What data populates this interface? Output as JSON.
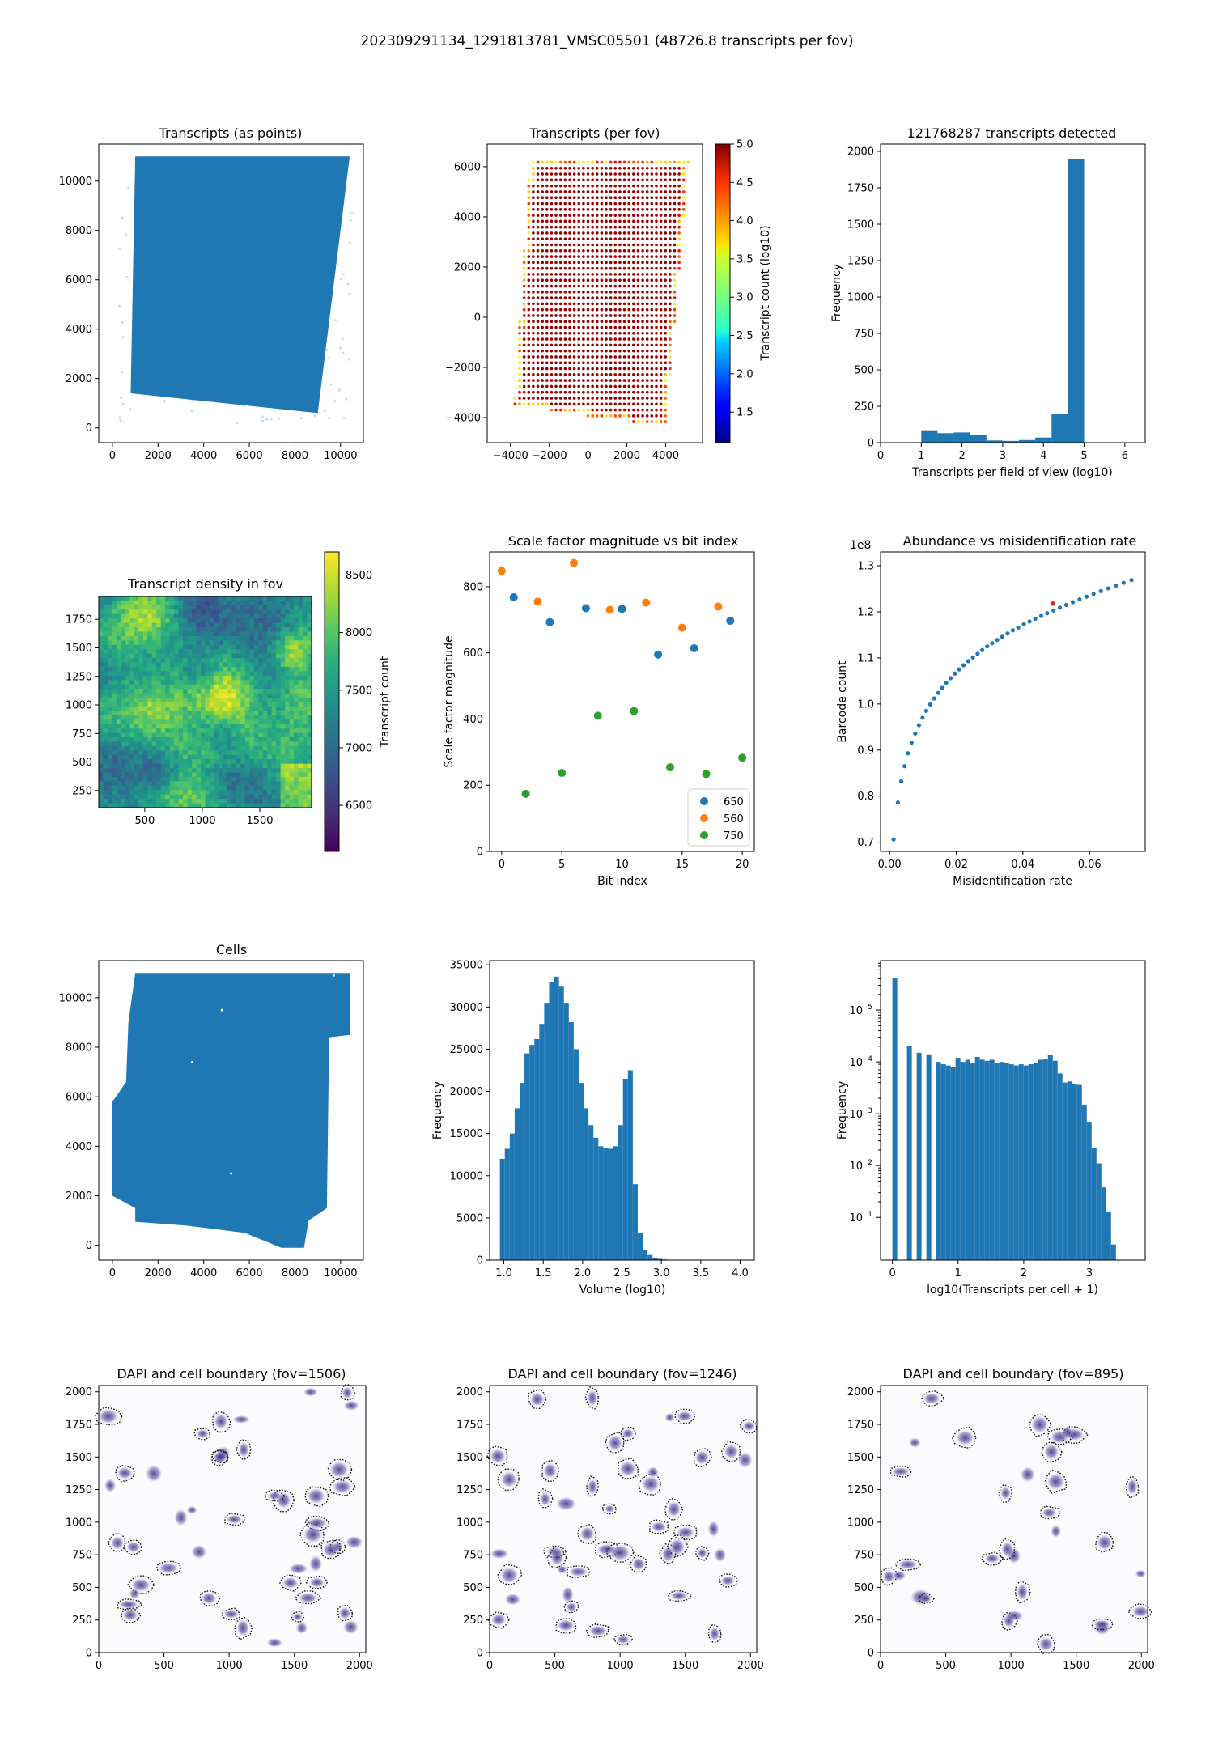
{
  "figure_title": "202309291134_1291813781_VMSC05501 (48726.8 transcripts per fov)",
  "colors": {
    "blue": "#1f77b4",
    "orange": "#ff7f0e",
    "green": "#2ca02c",
    "red_point": "#d62728"
  },
  "chart_data": [
    {
      "id": "transcripts-points",
      "type": "scatter",
      "title": "Transcripts (as points)",
      "xlabel": "",
      "ylabel": "",
      "xlim": [
        -600,
        11000
      ],
      "ylim": [
        -600,
        11500
      ],
      "xticks": [
        0,
        2000,
        4000,
        6000,
        8000,
        10000
      ],
      "yticks": [
        0,
        2000,
        4000,
        6000,
        8000,
        10000
      ],
      "region_polygon": [
        [
          1000,
          11000
        ],
        [
          10400,
          11000
        ],
        [
          9000,
          600
        ],
        [
          800,
          1400
        ]
      ],
      "color": "#1f77b4"
    },
    {
      "id": "transcripts-per-fov",
      "type": "scatter",
      "title": "Transcripts (per fov)",
      "xlim": [
        -5200,
        5900
      ],
      "ylim": [
        -5000,
        6900
      ],
      "xticks": [
        -4000,
        -2000,
        0,
        2000,
        4000
      ],
      "xtick_labels": [
        "−4000",
        "−2000",
        "0",
        "2000",
        "4000"
      ],
      "yticks": [
        -4000,
        -2000,
        0,
        2000,
        4000,
        6000
      ],
      "ytick_labels": [
        "−4000",
        "−2000",
        "0",
        "2000",
        "4000",
        "6000"
      ],
      "colorbar": {
        "label": "Transcript count (log10)",
        "ticks": [
          1.5,
          2.0,
          2.5,
          3.0,
          3.5,
          4.0,
          4.5,
          5.0
        ],
        "tick_labels": [
          "1.5",
          "2.0",
          "2.5",
          "3.0",
          "3.5",
          "4.0",
          "4.5",
          "5.0"
        ],
        "range": [
          1.1,
          5.0
        ],
        "colormap": "jet"
      },
      "grid_polygon": [
        [
          -3000,
          6400
        ],
        [
          5200,
          6400
        ],
        [
          4000,
          -4400
        ],
        [
          -3800,
          -3500
        ]
      ],
      "interior_value": 4.9,
      "edge_value": 3.3
    },
    {
      "id": "transcripts-histogram",
      "type": "bar",
      "title": "121768287 transcripts detected",
      "xlabel": "Transcripts per field of view (log10)",
      "ylabel": "Frequency",
      "xlim": [
        0,
        6.5
      ],
      "ylim": [
        0,
        2050
      ],
      "xticks": [
        0,
        1,
        2,
        3,
        4,
        5,
        6
      ],
      "yticks": [
        0,
        250,
        500,
        750,
        1000,
        1250,
        1500,
        1750,
        2000
      ],
      "bin_edges": [
        1.0,
        1.4,
        1.8,
        2.2,
        2.6,
        3.0,
        3.4,
        3.8,
        4.2,
        4.6,
        5.0
      ],
      "values": [
        85,
        65,
        70,
        55,
        15,
        12,
        18,
        35,
        200,
        1945
      ]
    },
    {
      "id": "density-in-fov",
      "type": "heatmap",
      "title": "Transcript density in fov",
      "xlim": [
        100,
        1950
      ],
      "ylim": [
        100,
        1950
      ],
      "xticks": [
        500,
        1000,
        1500
      ],
      "yticks": [
        250,
        500,
        750,
        1000,
        1250,
        1500,
        1750
      ],
      "colorbar": {
        "label": "Transcript count",
        "ticks": [
          6500,
          7000,
          7500,
          8000,
          8500
        ],
        "tick_labels": [
          "6500",
          "7000",
          "7500",
          "8000",
          "8500"
        ],
        "range": [
          6100,
          8700
        ],
        "colormap": "viridis"
      }
    },
    {
      "id": "scale-factor",
      "type": "scatter",
      "title": "Scale factor magnitude vs bit index",
      "xlabel": "Bit index",
      "ylabel": "Scale factor magnitude",
      "xlim": [
        -1,
        21
      ],
      "ylim": [
        0,
        905
      ],
      "xticks": [
        0,
        5,
        10,
        15,
        20
      ],
      "yticks": [
        0,
        200,
        400,
        600,
        800
      ],
      "legend_position": "lower-right",
      "series": [
        {
          "name": "650",
          "color": "#1f77b4",
          "x": [
            1,
            4,
            7,
            10,
            13,
            16,
            19
          ],
          "y": [
            768,
            693,
            735,
            733,
            595,
            614,
            697
          ]
        },
        {
          "name": "560",
          "color": "#ff7f0e",
          "x": [
            0,
            3,
            6,
            9,
            12,
            15,
            18
          ],
          "y": [
            848,
            755,
            872,
            730,
            752,
            676,
            740
          ]
        },
        {
          "name": "750",
          "color": "#2ca02c",
          "x": [
            2,
            5,
            8,
            11,
            14,
            17,
            20
          ],
          "y": [
            174,
            237,
            410,
            424,
            254,
            234,
            283
          ]
        }
      ]
    },
    {
      "id": "abundance",
      "type": "scatter",
      "title": "Abundance vs misidentification rate",
      "xlabel": "Misidentification rate",
      "ylabel": "Barcode count",
      "offset_label": "1e8",
      "xlim": [
        -0.0027,
        0.0767
      ],
      "ylim": [
        0.68,
        1.33
      ],
      "xticks": [
        0.0,
        0.02,
        0.04,
        0.06
      ],
      "xtick_labels": [
        "0.00",
        "0.02",
        "0.04",
        "0.06"
      ],
      "yticks": [
        0.7,
        0.8,
        0.9,
        1.0,
        1.1,
        1.2,
        1.3
      ],
      "ytick_labels": [
        "0.7",
        "0.8",
        "0.9",
        "1.0",
        "1.1",
        "1.2",
        "1.3"
      ],
      "x": [
        0.0012,
        0.0025,
        0.0035,
        0.0045,
        0.0055,
        0.0066,
        0.0077,
        0.0088,
        0.0099,
        0.011,
        0.0122,
        0.0134,
        0.0146,
        0.0158,
        0.017,
        0.0183,
        0.0196,
        0.0209,
        0.0222,
        0.0236,
        0.025,
        0.0264,
        0.0278,
        0.0293,
        0.0308,
        0.0323,
        0.0338,
        0.0354,
        0.037,
        0.0386,
        0.0403,
        0.042,
        0.0437,
        0.0455,
        0.0473,
        0.0492,
        0.0511,
        0.053,
        0.055,
        0.057,
        0.0591,
        0.0612,
        0.0634,
        0.0656,
        0.0679,
        0.0702,
        0.0726
      ],
      "y": [
        0.706,
        0.786,
        0.832,
        0.865,
        0.893,
        0.916,
        0.936,
        0.954,
        0.97,
        0.985,
        0.999,
        1.012,
        1.024,
        1.035,
        1.046,
        1.056,
        1.066,
        1.075,
        1.084,
        1.093,
        1.101,
        1.109,
        1.117,
        1.125,
        1.132,
        1.139,
        1.146,
        1.153,
        1.16,
        1.166,
        1.173,
        1.179,
        1.185,
        1.191,
        1.197,
        1.203,
        1.209,
        1.215,
        1.221,
        1.227,
        1.233,
        1.239,
        1.245,
        1.251,
        1.257,
        1.263,
        1.269
      ],
      "highlight": {
        "x": 0.049,
        "y": 1.218,
        "color": "#d62728"
      }
    },
    {
      "id": "cells",
      "type": "scatter",
      "title": "Cells",
      "xlim": [
        -600,
        11000
      ],
      "ylim": [
        -600,
        11500
      ],
      "xticks": [
        0,
        2000,
        4000,
        6000,
        8000,
        10000
      ],
      "yticks": [
        0,
        2000,
        4000,
        6000,
        8000,
        10000
      ],
      "region_polygon": [
        [
          1000,
          11000
        ],
        [
          10400,
          11000
        ],
        [
          10400,
          8500
        ],
        [
          9500,
          8400
        ],
        [
          9400,
          1500
        ],
        [
          8600,
          1000
        ],
        [
          8400,
          -100
        ],
        [
          7400,
          -100
        ],
        [
          5800,
          500
        ],
        [
          3200,
          800
        ],
        [
          1000,
          950
        ],
        [
          1000,
          1500
        ],
        [
          0,
          2000
        ],
        [
          0,
          5800
        ],
        [
          600,
          6600
        ],
        [
          700,
          9000
        ]
      ],
      "color": "#1f77b4"
    },
    {
      "id": "volume-histogram",
      "type": "bar",
      "title": "",
      "xlabel": "Volume (log10)",
      "ylabel": "Frequency",
      "xlim": [
        0.82,
        4.18
      ],
      "ylim": [
        0,
        35500
      ],
      "xticks": [
        1.0,
        1.5,
        2.0,
        2.5,
        3.0,
        3.5,
        4.0
      ],
      "xtick_labels": [
        "1.0",
        "1.5",
        "2.0",
        "2.5",
        "3.0",
        "3.5",
        "4.0"
      ],
      "yticks": [
        0,
        5000,
        10000,
        15000,
        20000,
        25000,
        30000,
        35000
      ],
      "bin_start": 0.95,
      "bin_width": 0.0625,
      "values": [
        12000,
        13200,
        15000,
        18000,
        21000,
        24500,
        25500,
        26200,
        28000,
        30500,
        33000,
        33600,
        32500,
        30500,
        28200,
        25000,
        21000,
        18000,
        16000,
        14500,
        13500,
        13300,
        13200,
        13500,
        16000,
        21500,
        22500,
        9000,
        3200,
        1200,
        600,
        300,
        150,
        80,
        40,
        20,
        10,
        5,
        3,
        2,
        1,
        1,
        1,
        1,
        1,
        1,
        1,
        1,
        1
      ]
    },
    {
      "id": "transcripts-per-cell",
      "type": "bar",
      "title": "",
      "xlabel": "log10(Transcripts per cell + 1)",
      "ylabel": "Frequency",
      "log_y": true,
      "xlim": [
        -0.18,
        3.85
      ],
      "ylim": [
        1.5,
        900000
      ],
      "xticks": [
        0,
        1,
        2,
        3
      ],
      "ytick_exponents": [
        1,
        2,
        3,
        4,
        5
      ],
      "bin_start": 0.0,
      "bin_width": 0.074,
      "values": [
        420000,
        1,
        1,
        20000,
        1,
        15000,
        1,
        14000,
        1,
        10000,
        9000,
        8500,
        8000,
        12000,
        10000,
        11000,
        9500,
        12500,
        11000,
        10500,
        11000,
        9500,
        10000,
        9500,
        9000,
        8500,
        9000,
        8500,
        9000,
        9500,
        11000,
        11500,
        13500,
        10500,
        6000,
        4000,
        4200,
        3800,
        3600,
        1500,
        700,
        220,
        110,
        38,
        13,
        3
      ]
    }
  ],
  "dapi_panels": [
    {
      "id": "dapi-1506",
      "title": "DAPI and cell boundary (fov=1506)",
      "xticks": [
        0,
        500,
        1000,
        1500,
        2000
      ],
      "yticks": [
        0,
        250,
        500,
        750,
        1000,
        1250,
        1500,
        1750,
        2000
      ],
      "xlim": [
        0,
        2048
      ],
      "ylim": [
        0,
        2048
      ],
      "seed": 1506
    },
    {
      "id": "dapi-1246",
      "title": "DAPI and cell boundary (fov=1246)",
      "xticks": [
        0,
        500,
        1000,
        1500,
        2000
      ],
      "yticks": [
        0,
        250,
        500,
        750,
        1000,
        1250,
        1500,
        1750,
        2000
      ],
      "xlim": [
        0,
        2048
      ],
      "ylim": [
        0,
        2048
      ],
      "seed": 1246
    },
    {
      "id": "dapi-895",
      "title": "DAPI and cell boundary (fov=895)",
      "xticks": [
        0,
        500,
        1000,
        1500,
        2000
      ],
      "yticks": [
        0,
        250,
        500,
        750,
        1000,
        1250,
        1500,
        1750,
        2000
      ],
      "xlim": [
        0,
        2048
      ],
      "ylim": [
        0,
        2048
      ],
      "seed": 895
    }
  ]
}
